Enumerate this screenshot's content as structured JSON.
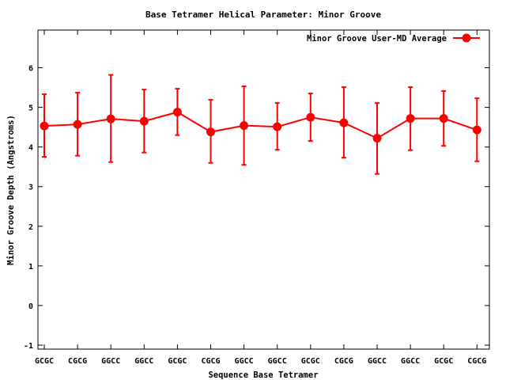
{
  "chart_data": {
    "type": "line",
    "title": "Base Tetramer Helical Parameter: Minor Groove",
    "xlabel": "Sequence Base Tetramer",
    "ylabel": "Minor Groove Depth (Angstroms)",
    "ylim": [
      -1.1,
      6.95
    ],
    "yticks": [
      -1,
      0,
      1,
      2,
      3,
      4,
      5,
      6
    ],
    "categories": [
      "GCGC",
      "CGCG",
      "GGCC",
      "GGCC",
      "GCGC",
      "CGCG",
      "GGCC",
      "GGCC",
      "GCGC",
      "CGCG",
      "GGCC",
      "GGCC",
      "GCGC",
      "CGCG"
    ],
    "grid": false,
    "legend_position": "top-right",
    "series": [
      {
        "name": "Minor Groove User-MD Average",
        "color": "#ff0000",
        "values": [
          4.53,
          4.57,
          4.71,
          4.65,
          4.88,
          4.38,
          4.54,
          4.51,
          4.75,
          4.61,
          4.22,
          4.72,
          4.72,
          4.43
        ],
        "err_low": [
          3.75,
          3.78,
          3.62,
          3.86,
          4.3,
          3.6,
          3.55,
          3.93,
          4.15,
          3.73,
          3.32,
          3.92,
          4.03,
          3.64
        ],
        "err_high": [
          5.33,
          5.37,
          5.82,
          5.45,
          5.47,
          5.19,
          5.53,
          5.11,
          5.35,
          5.51,
          5.11,
          5.51,
          5.41,
          5.23
        ]
      }
    ]
  }
}
